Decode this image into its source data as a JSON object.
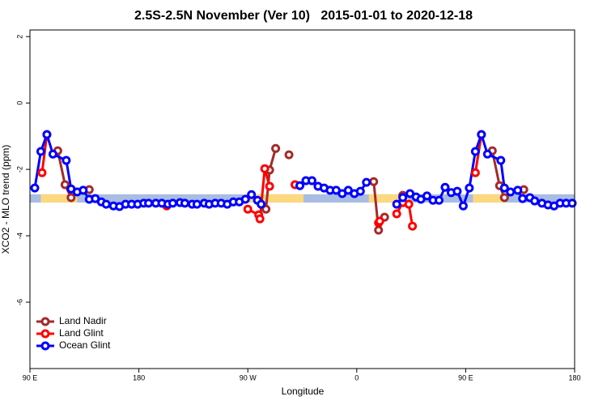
{
  "chart_data": {
    "type": "line",
    "title": "2.5S-2.5N November (Ver 10)   2015-01-01 to 2020-12-18",
    "xlabel": "Longitude",
    "ylabel": "XCO2 - MLO trend (ppm)",
    "xlim": [
      90,
      540
    ],
    "xticks": [
      {
        "value": 90,
        "label": "90 E"
      },
      {
        "value": 180,
        "label": "180"
      },
      {
        "value": 270,
        "label": "90 W"
      },
      {
        "value": 360,
        "label": "0"
      },
      {
        "value": 450,
        "label": "90 E"
      },
      {
        "value": 540,
        "label": "180"
      }
    ],
    "ylim": [
      -8,
      2.2
    ],
    "yticks": [
      2,
      0,
      -2,
      -4,
      -6
    ],
    "legend": "bottom-left",
    "background_band": {
      "ylim": [
        -2.75,
        -3.0
      ],
      "ocean_color": "#a9bde2",
      "land_color": "#fcd97e",
      "land_lon": [
        [
          99,
          129
        ],
        [
          266,
          316
        ],
        [
          370,
          403
        ],
        [
          456,
          483
        ]
      ]
    },
    "series": [
      {
        "name": "Land Nadir",
        "color": "#a52a2a",
        "x": [
          113,
          119,
          124,
          null,
          139,
          null,
          285,
          288,
          293,
          null,
          304,
          null,
          374,
          378,
          383,
          null,
          398,
          null,
          472,
          478,
          482,
          null,
          498
        ],
        "values": [
          -1.44,
          -2.46,
          -2.85,
          null,
          -2.61,
          null,
          -3.2,
          -2.02,
          -1.37,
          null,
          -1.56,
          null,
          -2.37,
          -3.83,
          -3.44,
          null,
          -2.78,
          null,
          -1.44,
          -2.49,
          -2.85,
          null,
          -2.61
        ]
      },
      {
        "name": "Land Glint",
        "color": "#ff0000",
        "x": [
          100,
          104,
          null,
          203,
          null,
          270,
          279,
          280,
          284,
          288,
          null,
          309,
          null,
          378,
          379,
          null,
          393,
          398,
          403,
          406,
          null,
          458,
          463
        ],
        "values": [
          -2.1,
          -0.95,
          null,
          -3.1,
          null,
          -3.2,
          -3.37,
          -3.49,
          -1.98,
          -2.51,
          null,
          -2.46,
          null,
          -3.61,
          -3.56,
          null,
          -3.34,
          -3.0,
          -3.05,
          -3.71,
          null,
          -2.1,
          -0.95
        ]
      },
      {
        "name": "Ocean Glint",
        "color": "#0000ff",
        "x": [
          94,
          99,
          104,
          109,
          120,
          124,
          129,
          134,
          139,
          144,
          149,
          153,
          159,
          164,
          169,
          174,
          179,
          184,
          188,
          194,
          199,
          204,
          208,
          214,
          218,
          224,
          228,
          234,
          238,
          243,
          248,
          253,
          258,
          263,
          268,
          273,
          278,
          281,
          null,
          313,
          318,
          323,
          328,
          333,
          338,
          343,
          348,
          353,
          358,
          363,
          368,
          null,
          393,
          398,
          404,
          409,
          413,
          418,
          423,
          428,
          433,
          438,
          443,
          448,
          453,
          458,
          463,
          468,
          479,
          482,
          487,
          493,
          497,
          503,
          507,
          513,
          518,
          523,
          528,
          533,
          538
        ],
        "values": [
          -2.56,
          -1.46,
          -0.95,
          -1.54,
          -1.73,
          -2.59,
          -2.68,
          -2.63,
          -2.9,
          -2.88,
          -2.98,
          -3.05,
          -3.1,
          -3.12,
          -3.05,
          -3.05,
          -3.05,
          -3.02,
          -3.02,
          -3.02,
          -3.02,
          -3.05,
          -3.02,
          -3.0,
          -3.02,
          -3.05,
          -3.05,
          -3.02,
          -3.05,
          -3.02,
          -3.02,
          -3.05,
          -2.98,
          -2.98,
          -2.9,
          -2.76,
          -2.93,
          -3.05,
          null,
          -2.49,
          -2.34,
          -2.34,
          -2.51,
          -2.56,
          -2.63,
          -2.63,
          -2.73,
          -2.63,
          -2.73,
          -2.66,
          -2.39,
          null,
          -3.05,
          -2.85,
          -2.73,
          -2.83,
          -2.9,
          -2.8,
          -2.93,
          -2.93,
          -2.54,
          -2.7,
          -2.66,
          -3.1,
          -2.56,
          -1.46,
          -0.95,
          -1.54,
          -1.73,
          -2.56,
          -2.68,
          -2.63,
          -2.88,
          -2.85,
          -2.95,
          -3.02,
          -3.07,
          -3.1,
          -3.02,
          -3.02,
          -3.02
        ]
      }
    ]
  }
}
